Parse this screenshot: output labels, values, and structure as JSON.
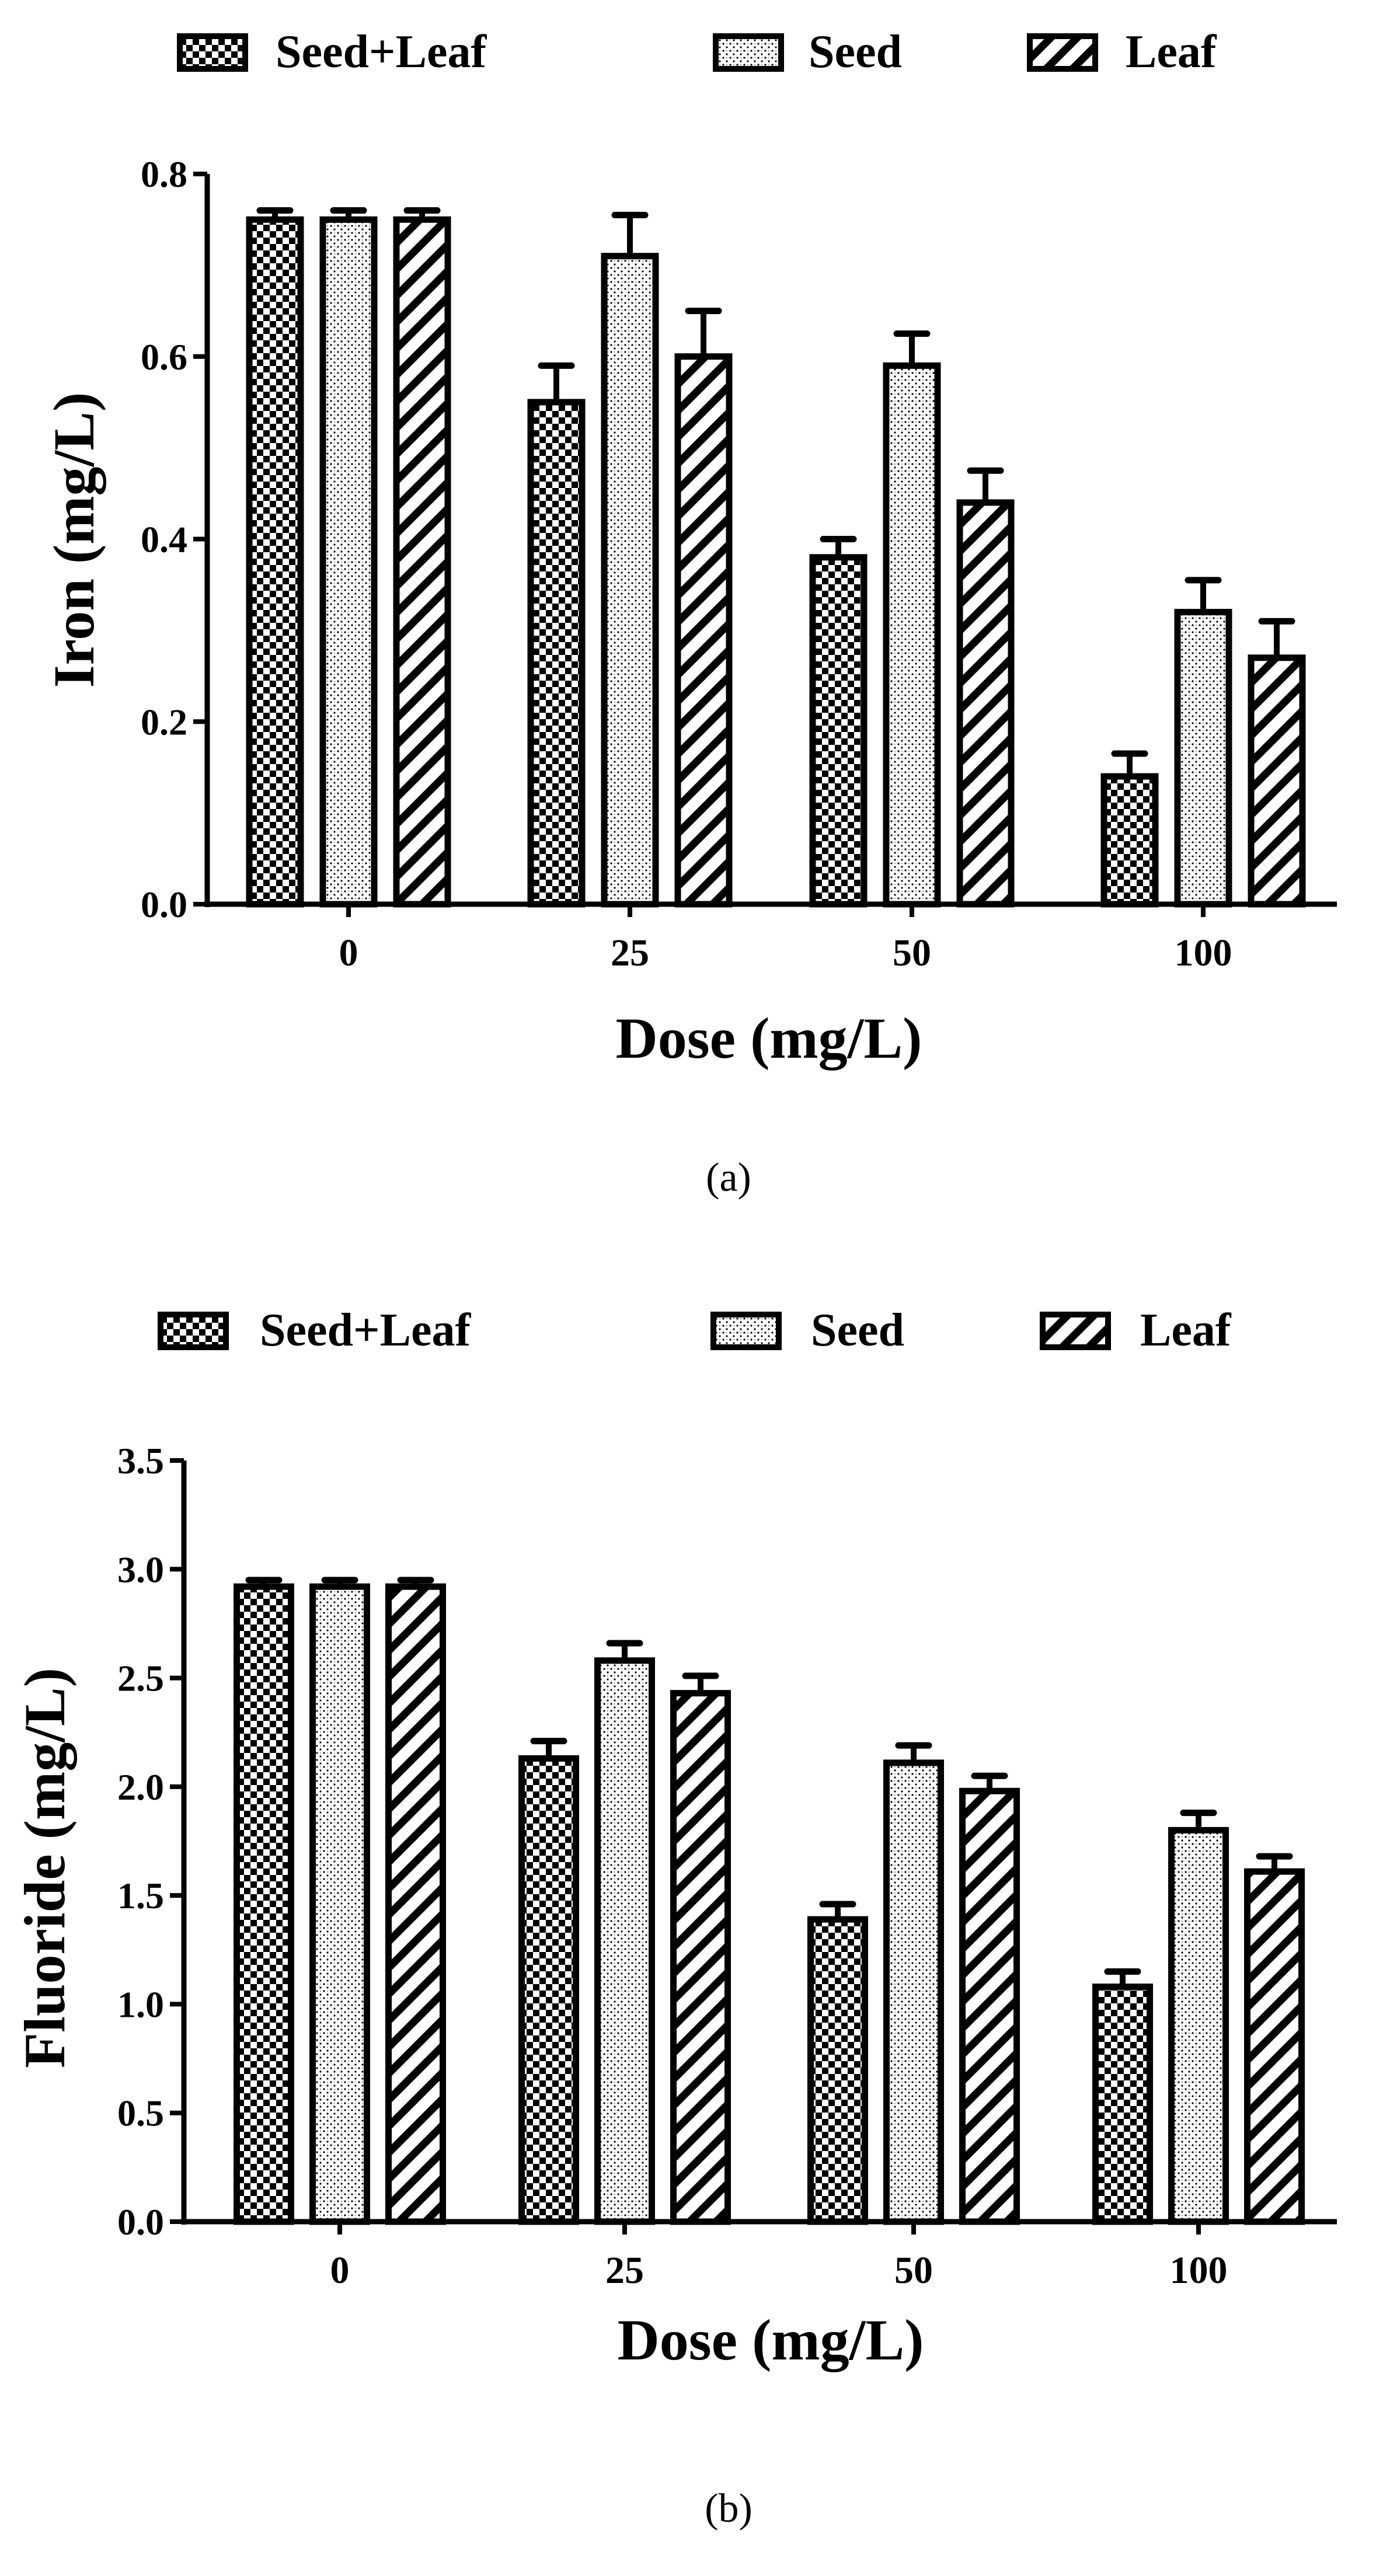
{
  "panels": [
    {
      "id": "a",
      "caption": "(a)",
      "legend": [
        {
          "label": "Seed+Leaf",
          "pattern": "checker"
        },
        {
          "label": "Seed",
          "pattern": "dots"
        },
        {
          "label": "Leaf",
          "pattern": "hatch"
        }
      ],
      "chart_data": {
        "type": "bar",
        "title": "",
        "xlabel": "Dose (mg/L)",
        "ylabel": "Iron (mg/L)",
        "categories": [
          "0",
          "25",
          "50",
          "100"
        ],
        "ylim": [
          0,
          0.8
        ],
        "yticks": [
          "0.0",
          "0.2",
          "0.4",
          "0.6",
          "0.8"
        ],
        "series": [
          {
            "name": "Seed+Leaf",
            "values": [
              0.75,
              0.55,
              0.38,
              0.14
            ],
            "errors": [
              0.01,
              0.04,
              0.02,
              0.025
            ]
          },
          {
            "name": "Seed",
            "values": [
              0.75,
              0.71,
              0.59,
              0.32
            ],
            "errors": [
              0.01,
              0.045,
              0.035,
              0.035
            ]
          },
          {
            "name": "Leaf",
            "values": [
              0.75,
              0.6,
              0.44,
              0.27
            ],
            "errors": [
              0.01,
              0.05,
              0.035,
              0.04
            ]
          }
        ]
      }
    },
    {
      "id": "b",
      "caption": "(b)",
      "legend": [
        {
          "label": "Seed+Leaf",
          "pattern": "checker"
        },
        {
          "label": "Seed",
          "pattern": "dots"
        },
        {
          "label": "Leaf",
          "pattern": "hatch"
        }
      ],
      "chart_data": {
        "type": "bar",
        "title": "",
        "xlabel": "Dose (mg/L)",
        "ylabel": "Fluoride (mg/L)",
        "categories": [
          "0",
          "25",
          "50",
          "100"
        ],
        "ylim": [
          0,
          3.5
        ],
        "yticks": [
          "0.0",
          "0.5",
          "1.0",
          "1.5",
          "2.0",
          "2.5",
          "3.0",
          "3.5"
        ],
        "series": [
          {
            "name": "Seed+Leaf",
            "values": [
              2.92,
              2.13,
              1.39,
              1.08
            ],
            "errors": [
              0.03,
              0.08,
              0.07,
              0.07
            ]
          },
          {
            "name": "Seed",
            "values": [
              2.92,
              2.58,
              2.11,
              1.8
            ],
            "errors": [
              0.03,
              0.08,
              0.08,
              0.08
            ]
          },
          {
            "name": "Leaf",
            "values": [
              2.92,
              2.43,
              1.98,
              1.61
            ],
            "errors": [
              0.03,
              0.08,
              0.07,
              0.07
            ]
          }
        ]
      }
    }
  ]
}
